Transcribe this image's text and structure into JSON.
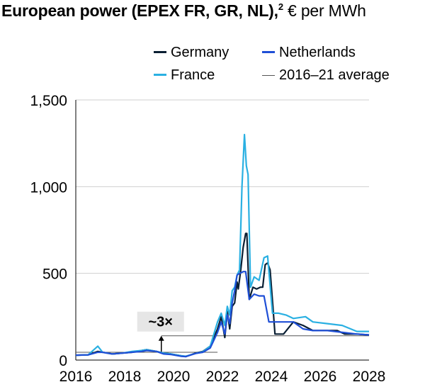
{
  "title": {
    "bold": "European power (EPEX FR, GR, NL),",
    "sup": "2",
    "rest": " € per MWh"
  },
  "colors": {
    "Germany": "#0a1f33",
    "Netherlands": "#1f4fd6",
    "France": "#2ab0e2",
    "average": "#555555",
    "grid": "#cfcfcf",
    "annotation_bg": "#e6e6e6"
  },
  "chart_data": {
    "type": "line",
    "title": "European power (EPEX FR, GR, NL), € per MWh",
    "xlabel": "",
    "ylabel": "",
    "xlim": [
      2016,
      2028
    ],
    "ylim": [
      0,
      1500
    ],
    "x_ticks": [
      "2016",
      "2018",
      "2020",
      "2022",
      "2024",
      "2026",
      "2028"
    ],
    "y_ticks": [
      "0",
      "500",
      "1,000",
      "1,500"
    ],
    "grid": "horizontal",
    "legend_placement": "top",
    "series": [
      {
        "name": "Germany",
        "x": [
          2016.0,
          2016.5,
          2016.9,
          2017.1,
          2017.5,
          2017.9,
          2018.3,
          2018.7,
          2018.9,
          2019.3,
          2019.6,
          2019.9,
          2020.3,
          2020.5,
          2020.9,
          2021.2,
          2021.5,
          2021.8,
          2021.95,
          2022.1,
          2022.2,
          2022.3,
          2022.4,
          2022.5,
          2022.6,
          2022.65,
          2022.75,
          2022.85,
          2022.95,
          2023.0,
          2023.1,
          2023.25,
          2023.4,
          2023.55,
          2023.65,
          2023.75,
          2023.85,
          2023.95,
          2024.05,
          2024.15,
          2024.3,
          2024.5,
          2024.9,
          2025.3,
          2025.7,
          2025.9,
          2026.3,
          2026.7,
          2027.0,
          2027.5,
          2028.0
        ],
        "y": [
          28,
          30,
          50,
          45,
          35,
          40,
          45,
          55,
          60,
          50,
          40,
          35,
          25,
          20,
          40,
          50,
          80,
          180,
          250,
          130,
          280,
          180,
          310,
          330,
          450,
          410,
          520,
          650,
          730,
          730,
          350,
          420,
          410,
          420,
          420,
          550,
          560,
          520,
          340,
          150,
          150,
          150,
          220,
          200,
          170,
          170,
          170,
          170,
          150,
          150,
          145
        ]
      },
      {
        "name": "Netherlands",
        "x": [
          2016.0,
          2016.5,
          2016.9,
          2017.1,
          2017.5,
          2017.9,
          2018.3,
          2018.7,
          2018.9,
          2019.3,
          2019.6,
          2019.9,
          2020.3,
          2020.5,
          2020.9,
          2021.2,
          2021.5,
          2021.8,
          2021.95,
          2022.1,
          2022.2,
          2022.3,
          2022.4,
          2022.5,
          2022.6,
          2022.7,
          2022.85,
          2022.95,
          2023.1,
          2023.3,
          2023.5,
          2023.7,
          2023.9,
          2024.05,
          2024.2,
          2024.6,
          2024.9,
          2025.3,
          2025.7,
          2026.3,
          2026.9,
          2027.5,
          2028.0
        ],
        "y": [
          28,
          30,
          45,
          45,
          35,
          40,
          45,
          50,
          55,
          50,
          35,
          32,
          22,
          20,
          38,
          45,
          70,
          160,
          220,
          150,
          260,
          210,
          330,
          400,
          490,
          500,
          510,
          510,
          350,
          380,
          370,
          370,
          220,
          220,
          220,
          220,
          220,
          180,
          170,
          170,
          160,
          150,
          145
        ]
      },
      {
        "name": "France",
        "x": [
          2016.0,
          2016.5,
          2016.9,
          2017.1,
          2017.5,
          2017.9,
          2018.3,
          2018.7,
          2018.9,
          2019.3,
          2019.6,
          2019.9,
          2020.3,
          2020.5,
          2020.9,
          2021.2,
          2021.5,
          2021.8,
          2021.95,
          2022.1,
          2022.2,
          2022.3,
          2022.4,
          2022.5,
          2022.6,
          2022.7,
          2022.8,
          2022.9,
          2022.98,
          2023.05,
          2023.15,
          2023.3,
          2023.5,
          2023.7,
          2023.85,
          2024.0,
          2024.05,
          2024.3,
          2024.6,
          2024.9,
          2025.4,
          2025.7,
          2026.3,
          2026.9,
          2027.5,
          2028.0
        ],
        "y": [
          28,
          30,
          80,
          45,
          35,
          40,
          50,
          55,
          60,
          50,
          40,
          35,
          25,
          22,
          38,
          48,
          80,
          220,
          270,
          200,
          310,
          260,
          400,
          420,
          490,
          520,
          1000,
          1300,
          1120,
          1070,
          420,
          480,
          460,
          590,
          600,
          350,
          270,
          270,
          260,
          240,
          250,
          220,
          210,
          200,
          165,
          165
        ]
      },
      {
        "name": "2016–21 average",
        "x": [
          2016.0,
          2021.8
        ],
        "y": [
          45,
          45
        ],
        "style": "thin"
      }
    ],
    "annotations": [
      {
        "text": "~3×",
        "x": 2019.5,
        "from_y": 45,
        "to_y": 140,
        "ref_line_y": 140
      }
    ]
  }
}
